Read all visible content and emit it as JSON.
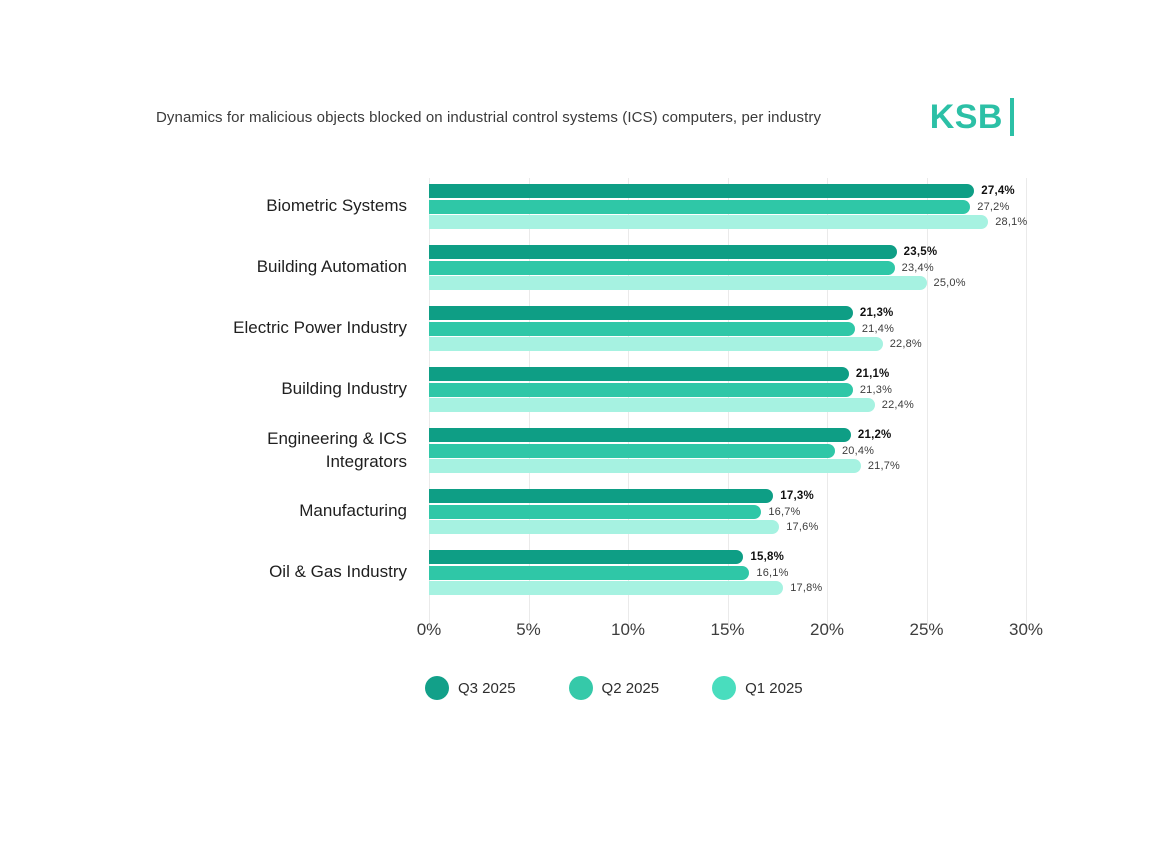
{
  "title": "Dynamics for malicious objects blocked on industrial control systems (ICS) computers, per industry",
  "logo": {
    "text": "KSB",
    "color": "#2cc0a6"
  },
  "chart_data": {
    "type": "bar",
    "orientation": "horizontal",
    "title": "Dynamics for malicious objects blocked on industrial control systems (ICS) computers, per industry",
    "categories": [
      "Biometric Systems",
      "Building Automation",
      "Electric Power Industry",
      "Building Industry",
      "Engineering & ICS\nIntegrators",
      "Manufacturing",
      "Oil & Gas Industry"
    ],
    "series": [
      {
        "name": "Q3 2025",
        "color": "#0e9e85",
        "legend_color": "#12a089",
        "emphasis": true,
        "values": [
          27.4,
          23.5,
          21.3,
          21.1,
          21.2,
          17.3,
          15.8
        ],
        "labels": [
          "27,4%",
          "23,5%",
          "21,3%",
          "21,1%",
          "21,2%",
          "17,3%",
          "15,8%"
        ]
      },
      {
        "name": "Q2 2025",
        "color": "#2fc7a7",
        "legend_color": "#35c9a9",
        "emphasis": false,
        "values": [
          27.2,
          23.4,
          21.4,
          21.3,
          20.4,
          16.7,
          16.1
        ],
        "labels": [
          "27,2%",
          "23,4%",
          "21,4%",
          "21,3%",
          "20,4%",
          "16,7%",
          "16,1%"
        ]
      },
      {
        "name": "Q1 2025",
        "color": "#a6f2e1",
        "legend_color": "#49ddbe",
        "emphasis": false,
        "values": [
          28.1,
          25.0,
          22.8,
          22.4,
          21.7,
          17.6,
          17.8
        ],
        "labels": [
          "28,1%",
          "25,0%",
          "22,8%",
          "22,4%",
          "21,7%",
          "17,6%",
          "17,8%"
        ]
      }
    ],
    "xlim": [
      0,
      30
    ],
    "x_ticks": [
      "0%",
      "5%",
      "10%",
      "15%",
      "20%",
      "25%",
      "30%"
    ],
    "grid": "vertical",
    "grid_color": "#eaeaea",
    "legend_position": "bottom"
  }
}
